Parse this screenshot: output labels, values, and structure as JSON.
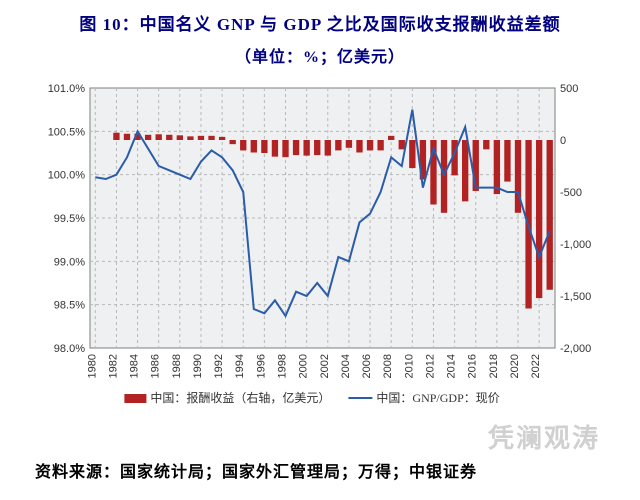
{
  "title": "图 10：中国名义 GNP 与 GDP 之比及国际收支报酬收益差额",
  "subtitle": "（单位：%；亿美元）",
  "source": "资料来源：国家统计局；国家外汇管理局；万得；中银证券",
  "watermark": "凭澜观涛",
  "chart": {
    "type": "combo-bar-line-dual-axis",
    "background_color": "#eef0f2",
    "plot_border_color": "#7f7f7f",
    "grid_color": "#b8b8b8",
    "grid_style": "dashed",
    "bar_color": "#b22222",
    "line_color": "#2a5caa",
    "line_width": 2,
    "legend": {
      "position": "bottom",
      "items": [
        {
          "swatch": "bar",
          "color": "#b22222",
          "label": "中国：报酬收益（右轴，亿美元）"
        },
        {
          "swatch": "line",
          "color": "#2a5caa",
          "label": "中国：GNP/GDP：现价"
        }
      ],
      "fontsize": 12
    },
    "x": {
      "labels": [
        "1980",
        "1982",
        "1984",
        "1986",
        "1988",
        "1990",
        "1992",
        "1994",
        "1996",
        "1998",
        "2000",
        "2002",
        "2004",
        "2006",
        "2008",
        "2010",
        "2012",
        "2014",
        "2016",
        "2018",
        "2020",
        "2022"
      ],
      "rotation": -90,
      "fontsize": 11,
      "color": "#333333"
    },
    "y_left": {
      "min": 98.0,
      "max": 101.0,
      "ticks": [
        98.0,
        98.5,
        99.0,
        99.5,
        100.0,
        100.5,
        101.0
      ],
      "tick_labels": [
        "98.0%",
        "98.5%",
        "99.0%",
        "99.5%",
        "100.0%",
        "100.5%",
        "101.0%"
      ],
      "fontsize": 11,
      "color": "#333333"
    },
    "y_right": {
      "min": -2000,
      "max": 500,
      "ticks": [
        -2000,
        -1500,
        -1000,
        -500,
        0,
        500
      ],
      "tick_labels": [
        "-2,000",
        "-1,500",
        "-1,000",
        "-500",
        "0",
        "500"
      ],
      "fontsize": 11,
      "color": "#333333"
    },
    "years": [
      1980,
      1981,
      1982,
      1983,
      1984,
      1985,
      1986,
      1987,
      1988,
      1989,
      1990,
      1991,
      1992,
      1993,
      1994,
      1995,
      1996,
      1997,
      1998,
      1999,
      2000,
      2001,
      2002,
      2003,
      2004,
      2005,
      2006,
      2007,
      2008,
      2009,
      2010,
      2011,
      2012,
      2013,
      2014,
      2015,
      2016,
      2017,
      2018,
      2019,
      2020,
      2021,
      2022,
      2023
    ],
    "line_values": [
      99.97,
      99.95,
      100.0,
      100.2,
      100.5,
      100.3,
      100.1,
      100.05,
      100.0,
      99.95,
      100.15,
      100.28,
      100.2,
      100.05,
      99.8,
      98.45,
      98.4,
      98.55,
      98.37,
      98.65,
      98.6,
      98.75,
      98.6,
      99.05,
      99.0,
      99.45,
      99.55,
      99.8,
      100.2,
      100.1,
      100.75,
      99.85,
      100.3,
      100.0,
      100.25,
      100.55,
      99.85,
      99.85,
      99.85,
      99.8,
      99.8,
      99.4,
      99.05,
      99.35
    ],
    "bar_values": [
      null,
      null,
      70,
      60,
      60,
      50,
      55,
      50,
      45,
      35,
      40,
      40,
      30,
      -40,
      -100,
      -120,
      -125,
      -160,
      -165,
      -145,
      -150,
      -145,
      -150,
      -100,
      -75,
      -120,
      -100,
      -100,
      40,
      -90,
      -270,
      -380,
      -620,
      -700,
      -340,
      -590,
      -490,
      -90,
      -520,
      -400,
      -700,
      -1620,
      -1520,
      -1440
    ]
  }
}
